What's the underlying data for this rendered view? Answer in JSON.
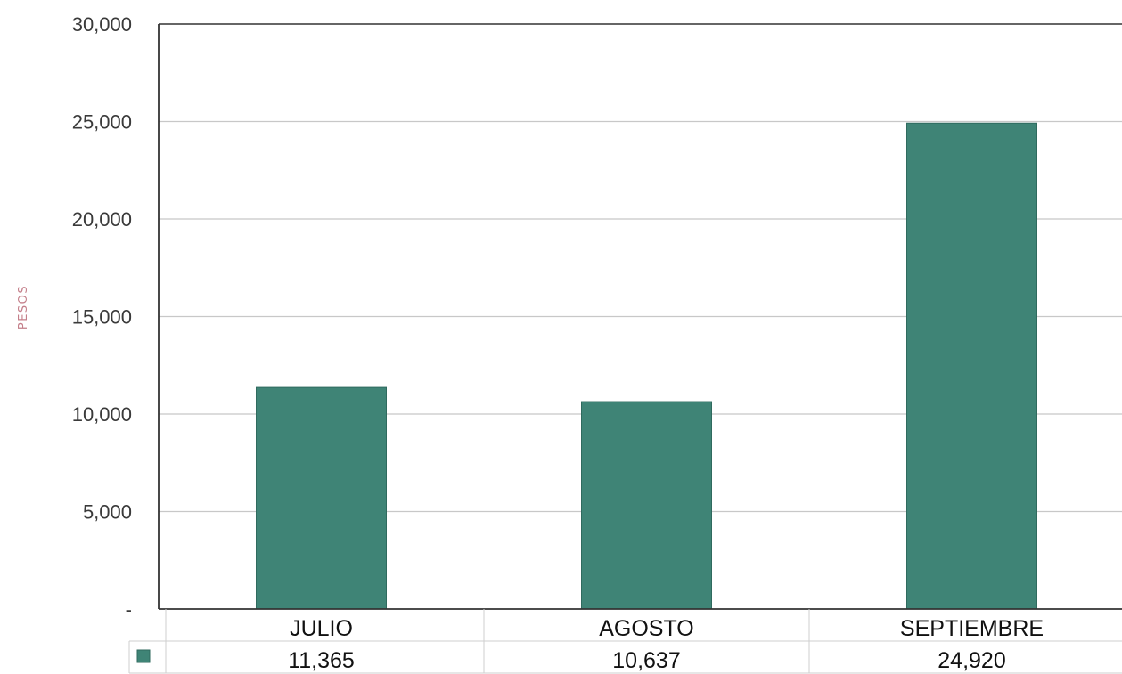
{
  "chart_data": {
    "type": "bar",
    "title": "",
    "xlabel": "",
    "ylabel": "PESOS",
    "categories": [
      "JULIO",
      "AGOSTO",
      "SEPTIEMBRE"
    ],
    "values": [
      11365,
      10637,
      24920
    ],
    "value_labels": [
      "11,365",
      "10,637",
      "24,920"
    ],
    "ylim": [
      0,
      30000
    ],
    "yticks": [
      0,
      5000,
      10000,
      15000,
      20000,
      25000,
      30000
    ],
    "ytick_labels": [
      "-",
      "5,000",
      "10,000",
      "15,000",
      "20,000",
      "25,000",
      "30,000"
    ],
    "grid": true,
    "legend": "data-table",
    "colors": {
      "bar": "#3f8476",
      "bar_edge": "#2f6a5e",
      "ylabel": "#c47f8a",
      "highlight_label": "#4a8a66",
      "grid": "#c8c8c8",
      "axis": "#333333",
      "table_grid": "#cfcfcf"
    }
  }
}
